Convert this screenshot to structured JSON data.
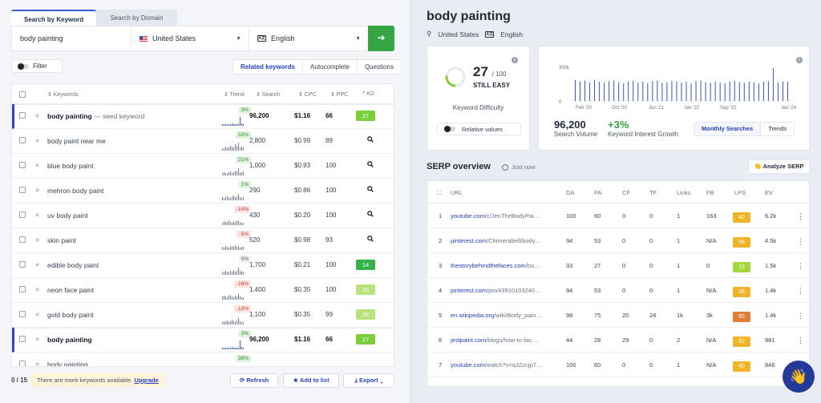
{
  "tabs": {
    "active": "Search by Keyword",
    "inactive": "Search by Domain"
  },
  "search": {
    "keyword": "body painting",
    "location": "United States",
    "language": "English",
    "go": "➜"
  },
  "filter_label": "Filter",
  "segments": [
    "Related keywords",
    "Autocomplete",
    "Questions"
  ],
  "kw_headers": {
    "keywords": "⇕ Keywords",
    "trend": "⇕ Trend",
    "search": "⇕ Search",
    "cpc": "⇕ CPC",
    "ppc": "⇕ PPC",
    "kd": "^ KD"
  },
  "keywords": [
    {
      "name": "body painting",
      "seed": " — seed keyword",
      "trend": "3%",
      "dir": "up",
      "search": "96,200",
      "cpc": "$1.16",
      "ppc": "66",
      "kd": "27",
      "kd_color": "#7bcf3a",
      "hl": true,
      "bars": [
        2,
        2,
        2,
        2,
        2,
        2,
        3,
        2,
        2,
        2,
        2,
        11,
        3,
        2
      ]
    },
    {
      "name": "body paint near me",
      "trend": "33%",
      "dir": "up",
      "search": "2,800",
      "cpc": "$0.99",
      "ppc": "89",
      "kd": "",
      "bars": [
        3,
        3,
        5,
        4,
        4,
        6,
        5,
        4,
        8,
        6,
        10,
        4,
        5,
        4
      ]
    },
    {
      "name": "blue body paint",
      "trend": "31%",
      "dir": "up",
      "search": "1,000",
      "cpc": "$0.93",
      "ppc": "100",
      "kd": "",
      "bars": [
        3,
        4,
        3,
        3,
        4,
        5,
        3,
        4,
        6,
        5,
        9,
        4,
        4,
        5
      ]
    },
    {
      "name": "mehron body paint",
      "trend": "1%",
      "dir": "up",
      "search": "290",
      "cpc": "$0.86",
      "ppc": "100",
      "kd": "",
      "bars": [
        4,
        3,
        4,
        5,
        4,
        3,
        5,
        6,
        4,
        5,
        8,
        4,
        3,
        4
      ]
    },
    {
      "name": "uv body paint",
      "trend": "-14%",
      "dir": "down",
      "search": "430",
      "cpc": "$0.20",
      "ppc": "100",
      "kd": "",
      "bars": [
        3,
        5,
        4,
        4,
        6,
        4,
        3,
        5,
        4,
        6,
        5,
        4,
        3,
        3
      ]
    },
    {
      "name": "skin paint",
      "trend": "-5%",
      "dir": "down",
      "search": "520",
      "cpc": "$0.98",
      "ppc": "93",
      "kd": "",
      "bars": [
        4,
        3,
        5,
        4,
        3,
        4,
        5,
        4,
        6,
        4,
        5,
        3,
        4,
        4
      ]
    },
    {
      "name": "edible body paint",
      "trend": "0%",
      "dir": "flat",
      "search": "1,700",
      "cpc": "$0.21",
      "ppc": "100",
      "kd": "14",
      "kd_color": "#37b14a",
      "bars": [
        3,
        4,
        5,
        4,
        3,
        5,
        4,
        6,
        4,
        5,
        9,
        5,
        4,
        4
      ]
    },
    {
      "name": "neon face paint",
      "trend": "-16%",
      "dir": "down",
      "search": "1,400",
      "cpc": "$0.35",
      "ppc": "100",
      "kd": "25",
      "kd_color": "#b9e27c",
      "bars": [
        4,
        5,
        4,
        3,
        5,
        6,
        4,
        3,
        5,
        4,
        7,
        4,
        3,
        3
      ]
    },
    {
      "name": "gold body paint",
      "trend": "-13%",
      "dir": "down",
      "search": "1,100",
      "cpc": "$0.35",
      "ppc": "99",
      "kd": "28",
      "kd_color": "#b9e27c",
      "bars": [
        3,
        4,
        4,
        5,
        3,
        4,
        6,
        4,
        3,
        5,
        8,
        4,
        3,
        3
      ]
    },
    {
      "name": "body painting",
      "trend": "3%",
      "dir": "up",
      "search": "96,200",
      "cpc": "$1.16",
      "ppc": "66",
      "kd": "27",
      "kd_color": "#7bcf3a",
      "hl": true,
      "bars": [
        2,
        2,
        2,
        2,
        2,
        2,
        3,
        2,
        2,
        2,
        2,
        11,
        3,
        2
      ]
    },
    {
      "name": "body painting",
      "trend": "38%",
      "dir": "up",
      "search": "",
      "cpc": "",
      "ppc": "",
      "kd": "",
      "bars": [
        3,
        4,
        3,
        5,
        4,
        3,
        4,
        5
      ]
    }
  ],
  "bottom": {
    "count": "0 / 15",
    "notice": "There are more keywords available.",
    "upgrade": "Upgrade",
    "refresh": "⟳ Refresh",
    "addlist": "★ Add to list",
    "export": "⤓ Export ⌄"
  },
  "right": {
    "title": "body painting",
    "location": "United States",
    "language": "English",
    "kd_value": "27",
    "kd_max": "/ 100",
    "kd_label": "STILL EASY",
    "kd_title": "Keyword Difficulty",
    "relative": "Relative values",
    "trend_y": [
      "300k",
      "0"
    ],
    "trend_x": [
      "Feb '20",
      "Oct '20",
      "Jun '21",
      "Jan '22",
      "Sep '22",
      "Jan '24"
    ],
    "search_volume": "96,200",
    "search_volume_label": "Search Volume",
    "growth": "+3%",
    "growth_label": "Keyword Interest Growth",
    "view_monthly": "Monthly Searches",
    "view_trends": "Trends",
    "serp_title": "SERP overview",
    "serp_time": "Just now",
    "analyze": "👏 Analyze SERP"
  },
  "serp_headers": {
    "url": "URL",
    "da": "DA",
    "pa": "PA",
    "cf": "CF",
    "tf": "TF",
    "links": "Links",
    "fb": "FB",
    "lps": "LPS",
    "ev": "EV"
  },
  "serp_rows": [
    {
      "n": "1",
      "domain": "youtube.com",
      "path": "/c/JenTheBodyPai…",
      "da": "100",
      "pa": "60",
      "cf": "0",
      "tf": "0",
      "links": "1",
      "fb": "163",
      "lps": "40",
      "lps_color": "#f0b429",
      "ev": "6.2k"
    },
    {
      "n": "2",
      "domain": "pinterest.com",
      "path": "/Chimerabell/body…",
      "da": "94",
      "pa": "53",
      "cf": "0",
      "tf": "0",
      "links": "1",
      "fb": "N/A",
      "lps": "36",
      "lps_color": "#f0b429",
      "ev": "4.5k"
    },
    {
      "n": "3",
      "domain": "thestorybehindthefaces.com",
      "path": "/bo…",
      "da": "33",
      "pa": "27",
      "cf": "0",
      "tf": "0",
      "links": "1",
      "fb": "0",
      "lps": "15",
      "lps_color": "#a5d63a",
      "ev": "1.5k"
    },
    {
      "n": "4",
      "domain": "pinterest.com",
      "path": "/pin/43910103240…",
      "da": "94",
      "pa": "53",
      "cf": "0",
      "tf": "0",
      "links": "1",
      "fb": "N/A",
      "lps": "36",
      "lps_color": "#f0b429",
      "ev": "1.4k"
    },
    {
      "n": "5",
      "domain": "en.wikipedia.org",
      "path": "/wiki/Body_pain…",
      "da": "98",
      "pa": "75",
      "cf": "20",
      "tf": "24",
      "links": "1k",
      "fb": "3k",
      "lps": "65",
      "lps_color": "#e07b39",
      "ev": "1.4k"
    },
    {
      "n": "6",
      "domain": "jestpaint.com",
      "path": "/blogs/how-to-fac…",
      "da": "44",
      "pa": "28",
      "cf": "29",
      "tf": "0",
      "links": "2",
      "fb": "N/A",
      "lps": "32",
      "lps_color": "#f0b429",
      "ev": "981"
    },
    {
      "n": "7",
      "domain": "youtube.com",
      "path": "/watch?v=qJZzcjp7…",
      "da": "100",
      "pa": "60",
      "cf": "0",
      "tf": "0",
      "links": "1",
      "fb": "N/A",
      "lps": "40",
      "lps_color": "#f0b429",
      "ev": "846"
    }
  ],
  "trend_bars": [
    62,
    58,
    60,
    55,
    63,
    57,
    54,
    59,
    61,
    56,
    52,
    58,
    60,
    55,
    57,
    53,
    59,
    61,
    54,
    56,
    60,
    58,
    55,
    57,
    52,
    59,
    61,
    56,
    54,
    58,
    55,
    53,
    57,
    60,
    56,
    54,
    58,
    55,
    52,
    57,
    59,
    98,
    55,
    58,
    56
  ]
}
